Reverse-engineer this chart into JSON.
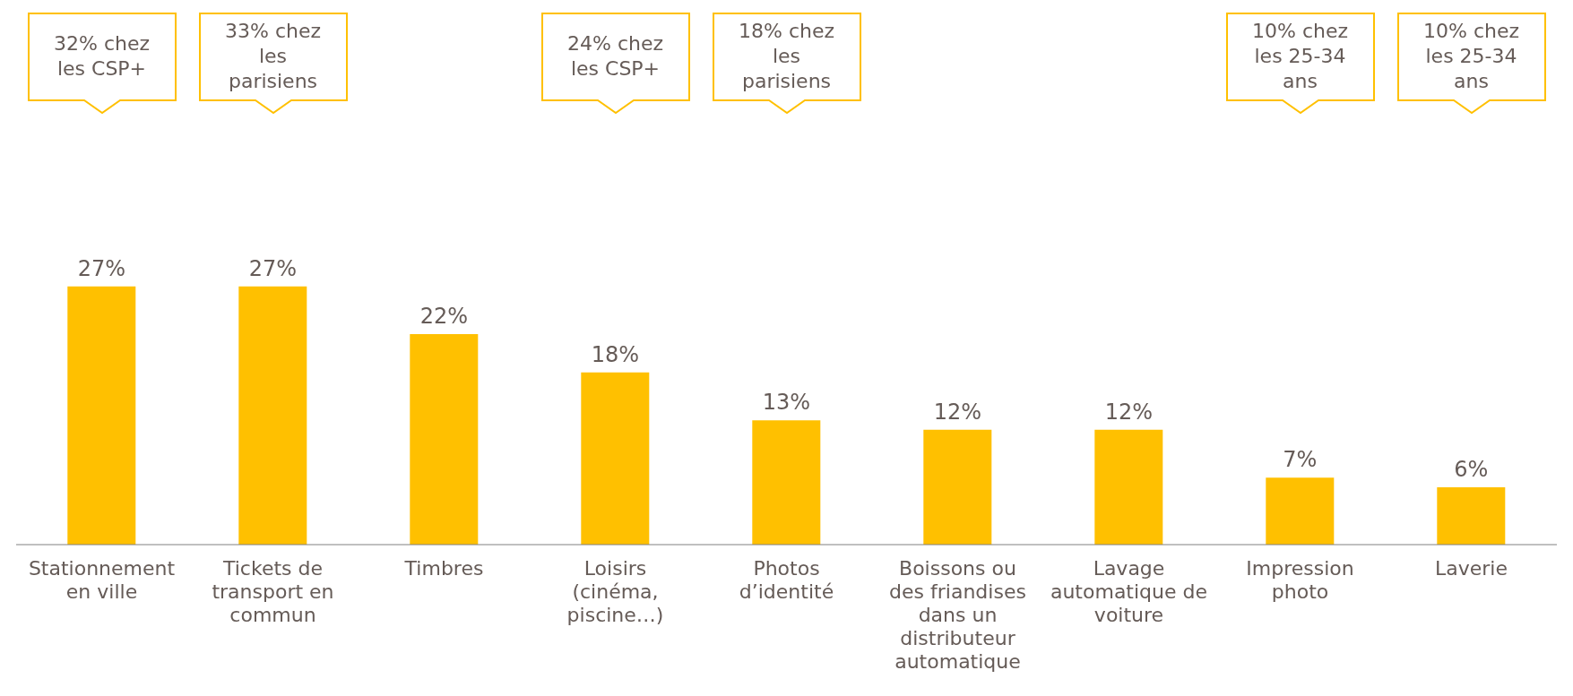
{
  "chart_data": {
    "type": "bar",
    "categories": [
      "Stationnement en ville",
      "Tickets de transport en commun",
      "Timbres",
      "Loisirs (cinéma, piscine…)",
      "Photos d’identité",
      "Boissons ou des friandises dans un distributeur automatique",
      "Lavage automatique de voiture",
      "Impression photo",
      "Laverie"
    ],
    "values": [
      27,
      27,
      22,
      18,
      13,
      12,
      12,
      7,
      6
    ],
    "value_labels": [
      "27%",
      "27%",
      "22%",
      "18%",
      "13%",
      "12%",
      "12%",
      "7%",
      "6%"
    ],
    "color": "#ffc000",
    "grid": false,
    "legend": false,
    "annotations": [
      "32% chez les CSP+",
      "33% chez les parisiens",
      "24% chez les CSP+",
      "18% chez les parisiens",
      "10% chez les 25-34 ans",
      "10% chez les 25-34 ans"
    ]
  }
}
